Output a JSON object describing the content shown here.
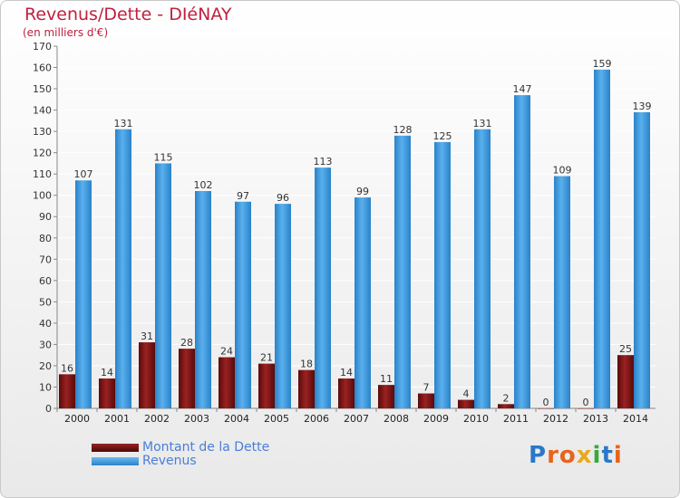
{
  "title": "Revenus/Dette - DIéNAY",
  "subtitle": "(en milliers d'€)",
  "legend": {
    "debt_label": "Montant de la Dette",
    "revenue_label": "Revenus"
  },
  "logo": {
    "text": "Proxiti",
    "letters": [
      "P",
      "r",
      "o",
      "x",
      "i",
      "t",
      "i"
    ],
    "colors": [
      "#2a78c8",
      "#e8631c",
      "#e8631c",
      "#e8a91c",
      "#3aa83a",
      "#2a78c8",
      "#e8631c"
    ]
  },
  "colors": {
    "debt": "#7a1414",
    "revenue": "#3a98de",
    "title": "#c0203e"
  },
  "chart_data": {
    "type": "bar",
    "categories": [
      "2000",
      "2001",
      "2002",
      "2003",
      "2004",
      "2005",
      "2006",
      "2007",
      "2008",
      "2009",
      "2010",
      "2011",
      "2012",
      "2013",
      "2014"
    ],
    "series": [
      {
        "name": "Montant de la Dette",
        "values": [
          16,
          14,
          31,
          28,
          24,
          21,
          18,
          14,
          11,
          7,
          4,
          2,
          0,
          0,
          25
        ]
      },
      {
        "name": "Revenus",
        "values": [
          107,
          131,
          115,
          102,
          97,
          96,
          113,
          99,
          128,
          125,
          131,
          147,
          109,
          159,
          139
        ]
      }
    ],
    "ylim": [
      0,
      170
    ],
    "yticks": [
      0,
      10,
      20,
      30,
      40,
      50,
      60,
      70,
      80,
      90,
      100,
      110,
      120,
      130,
      140,
      150,
      160,
      170
    ],
    "grid": true,
    "legend_position": "bottom-left"
  }
}
